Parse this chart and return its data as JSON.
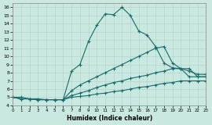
{
  "xlabel": "Humidex (Indice chaleur)",
  "xlim": [
    0,
    23
  ],
  "ylim": [
    4,
    16.5
  ],
  "xticks": [
    0,
    1,
    2,
    3,
    4,
    5,
    6,
    7,
    8,
    9,
    10,
    11,
    12,
    13,
    14,
    15,
    16,
    17,
    18,
    19,
    20,
    21,
    22,
    23
  ],
  "yticks": [
    4,
    5,
    6,
    7,
    8,
    9,
    10,
    11,
    12,
    13,
    14,
    15,
    16
  ],
  "bg_color": "#c8e8e0",
  "line_color": "#1a6b6b",
  "line1_x": [
    0,
    1,
    2,
    3,
    4,
    5,
    6,
    7,
    8,
    9,
    10,
    11,
    12,
    13,
    14,
    15,
    16,
    17,
    18,
    19,
    20,
    21,
    22,
    23
  ],
  "line1_y": [
    5.0,
    5.0,
    4.8,
    4.8,
    4.7,
    4.7,
    4.7,
    8.2,
    9.0,
    11.8,
    13.8,
    15.2,
    15.1,
    16.0,
    15.0,
    13.1,
    12.6,
    11.2,
    9.2,
    8.6,
    8.5,
    7.5,
    7.5,
    7.5
  ],
  "line2_x": [
    0,
    1,
    2,
    3,
    4,
    5,
    6,
    7,
    8,
    9,
    10,
    11,
    12,
    13,
    14,
    15,
    16,
    17,
    18,
    19,
    20,
    21,
    22,
    23
  ],
  "line2_y": [
    5.0,
    4.8,
    4.8,
    4.7,
    4.7,
    4.7,
    4.7,
    5.8,
    6.5,
    7.0,
    7.5,
    8.0,
    8.5,
    9.0,
    9.5,
    10.0,
    10.5,
    11.0,
    11.2,
    9.2,
    8.5,
    8.5,
    7.5,
    7.5
  ],
  "line3_x": [
    0,
    1,
    2,
    3,
    4,
    5,
    6,
    7,
    8,
    9,
    10,
    11,
    12,
    13,
    14,
    15,
    16,
    17,
    18,
    19,
    20,
    21,
    22,
    23
  ],
  "line3_y": [
    5.0,
    4.8,
    4.8,
    4.7,
    4.7,
    4.7,
    4.7,
    5.2,
    5.5,
    5.8,
    6.2,
    6.5,
    6.8,
    7.0,
    7.3,
    7.5,
    7.7,
    8.0,
    8.2,
    8.5,
    8.5,
    8.2,
    7.8,
    7.8
  ],
  "line4_x": [
    0,
    1,
    2,
    3,
    4,
    5,
    6,
    7,
    8,
    9,
    10,
    11,
    12,
    13,
    14,
    15,
    16,
    17,
    18,
    19,
    20,
    21,
    22,
    23
  ],
  "line4_y": [
    5.0,
    4.8,
    4.8,
    4.7,
    4.7,
    4.7,
    4.7,
    5.0,
    5.1,
    5.2,
    5.4,
    5.5,
    5.7,
    5.8,
    6.0,
    6.2,
    6.3,
    6.5,
    6.7,
    6.8,
    7.0,
    7.0,
    7.0,
    7.0
  ]
}
